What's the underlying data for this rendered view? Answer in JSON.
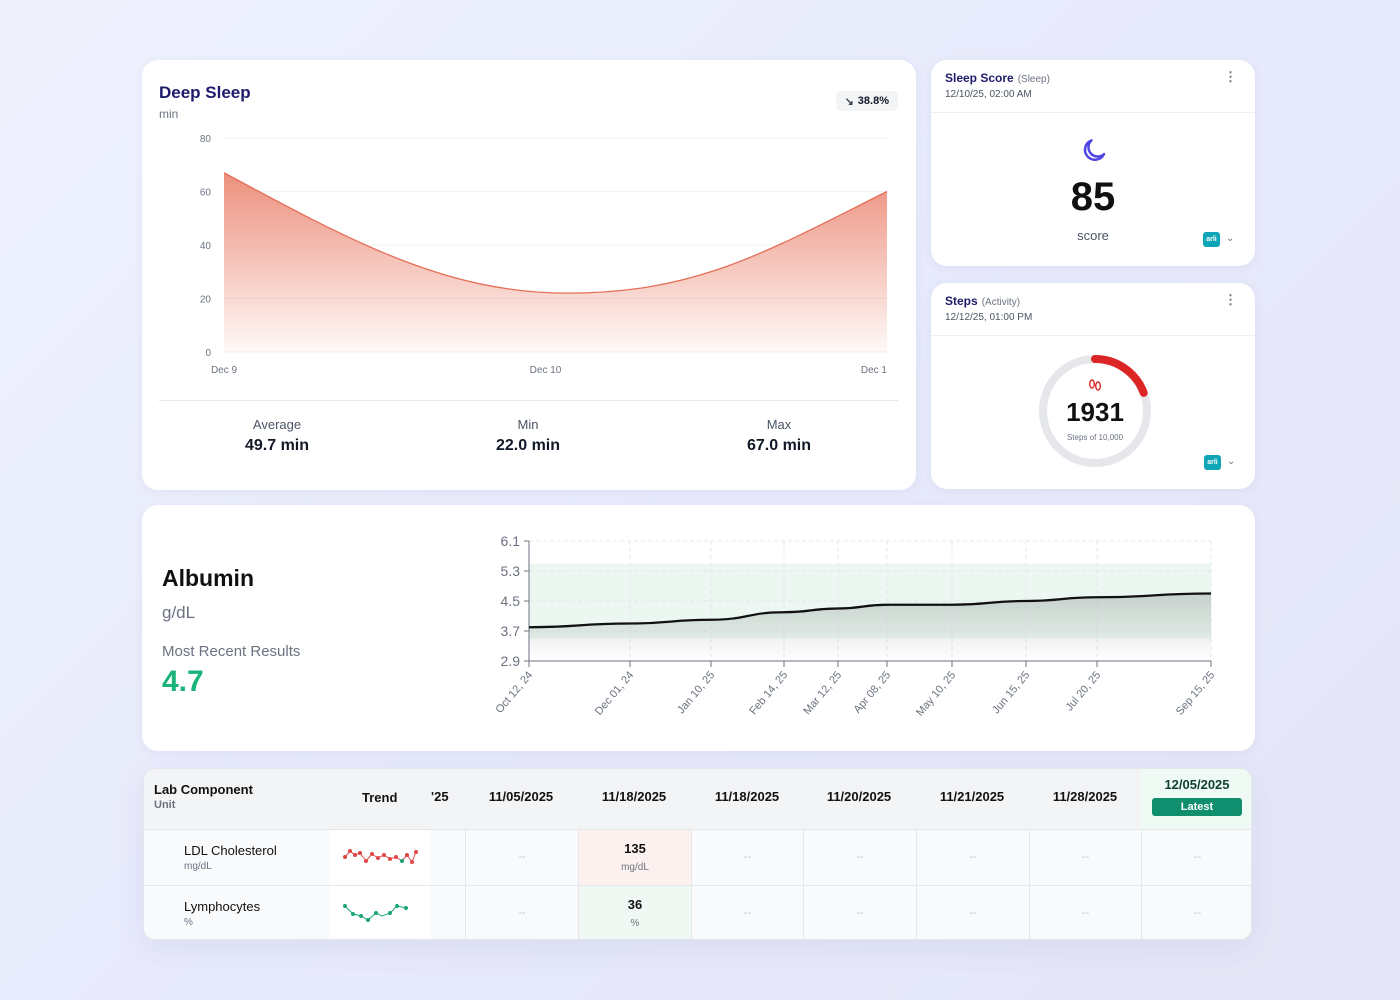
{
  "deep_sleep": {
    "title": "Deep Sleep",
    "unit": "min",
    "change": "38.8%",
    "stats": [
      {
        "label": "Average",
        "value": "49.7 min"
      },
      {
        "label": "Min",
        "value": "22.0 min"
      },
      {
        "label": "Max",
        "value": "67.0 min"
      }
    ],
    "chart_data": {
      "type": "area",
      "x_ticks": [
        "Dec 9",
        "Dec 10",
        "Dec 1"
      ],
      "y_ticks": [
        0,
        20,
        40,
        60,
        80
      ],
      "ylim": [
        0,
        80
      ],
      "values": [
        67.0,
        22.0,
        60.0
      ],
      "color": "#ec8a76"
    }
  },
  "sleep_score": {
    "name": "Sleep Score",
    "category": "(Sleep)",
    "timestamp": "12/10/25, 02:00 AM",
    "value": "85",
    "label": "score",
    "icon": "moon-icon",
    "source": "arli"
  },
  "steps": {
    "name": "Steps",
    "category": "(Activity)",
    "timestamp": "12/12/25, 01:00 PM",
    "value": "1931",
    "label": "Steps of 10,000",
    "progress": 0.1931,
    "icon": "footprints-icon",
    "source": "arli"
  },
  "albumin": {
    "title": "Albumin",
    "unit": "g/dL",
    "recent_label": "Most Recent Results",
    "recent_value": "4.7",
    "chart_data": {
      "type": "line",
      "y_ticks": [
        "6.1",
        "5.3",
        "4.5",
        "3.7",
        "2.9"
      ],
      "ylim": [
        2.9,
        6.1
      ],
      "normal_range": [
        3.5,
        5.5
      ],
      "x_labels": [
        "Oct 12, 24",
        "Dec 01, 24",
        "Jan 10, 25",
        "Feb 14, 25",
        "Mar 12, 25",
        "Apr 08, 25",
        "May 10, 25",
        "Jun 15, 25",
        "Jul 20, 25",
        "Sep 15, 25"
      ],
      "values": [
        3.8,
        3.9,
        4.0,
        4.2,
        4.3,
        4.4,
        4.4,
        4.5,
        4.6,
        4.7
      ]
    }
  },
  "lab": {
    "component_header": "Lab Component",
    "unit_header": "Unit",
    "trend_header": "Trend",
    "partial_date": "25",
    "dates": [
      "11/05/2025",
      "11/18/2025",
      "11/18/2025",
      "11/20/2025",
      "11/21/2025",
      "11/28/2025"
    ],
    "latest_date": "12/05/2025",
    "latest_label": "Latest",
    "empty": "--",
    "rows": [
      {
        "name": "LDL Cholesterol",
        "unit": "mg/dL",
        "value": "135",
        "value_unit": "mg/dL",
        "status_color": "#e04848"
      },
      {
        "name": "Lymphocytes",
        "unit": "%",
        "value": "36",
        "value_unit": "%",
        "status_color": "#1aa57a"
      }
    ]
  }
}
